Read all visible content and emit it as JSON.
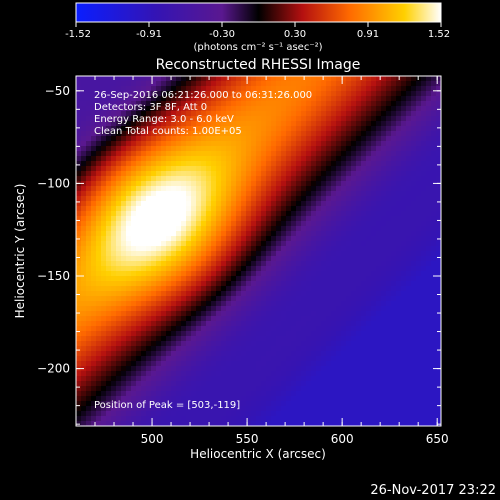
{
  "colorbar": {
    "ticks": [
      "-1.52",
      "-0.91",
      "-0.30",
      "0.30",
      "0.91",
      "1.52"
    ],
    "unit_label": "(photons cm⁻² s⁻¹ asec⁻²)"
  },
  "chart_data": {
    "type": "heatmap",
    "title": "Reconstructed RHESSI Image",
    "xlabel": "Heliocentric X (arcsec)",
    "ylabel": "Heliocentric Y (arcsec)",
    "xlim": [
      460,
      652
    ],
    "ylim": [
      -231,
      -42
    ],
    "xticks": [
      500,
      550,
      600,
      650
    ],
    "yticks": [
      -50,
      -100,
      -150,
      -200
    ],
    "color_range": [
      -1.52,
      1.52
    ],
    "colormap": "blue-purple-red-yellow-white",
    "peak": [
      503,
      -119
    ],
    "annotations": [
      "26-Sep-2016 06:21:26.000 to 06:31:26.000",
      "Detectors: 3F 8F, Att 0",
      "Energy Range: 3.0 - 6.0 keV",
      "Clean    Total counts: 1.00E+05"
    ],
    "peak_label": "Position of Peak = [503,-119]"
  },
  "footer": {
    "date": "26-Nov-2017 23:22"
  }
}
